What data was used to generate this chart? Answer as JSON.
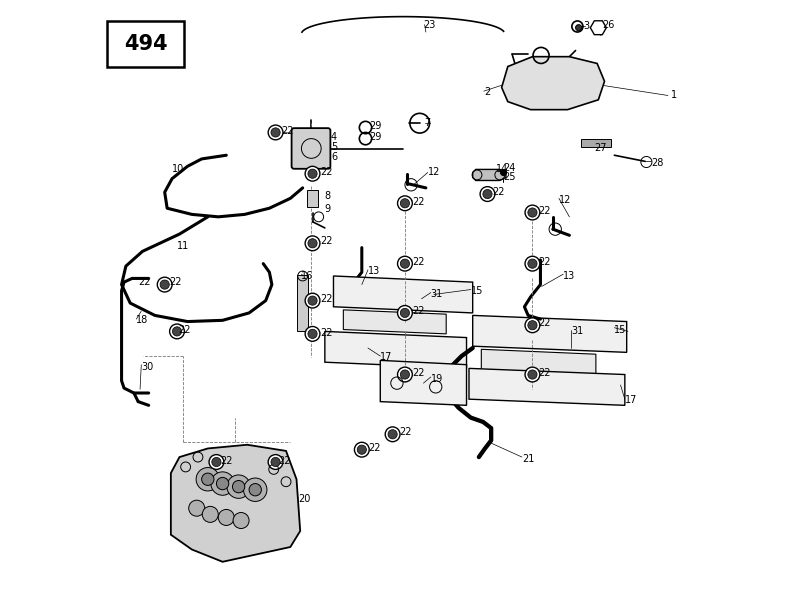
{
  "title": "494",
  "bg_color": "#ffffff",
  "line_color": "#000000",
  "label_color": "#000000",
  "fig_width": 8.0,
  "fig_height": 6.16
}
